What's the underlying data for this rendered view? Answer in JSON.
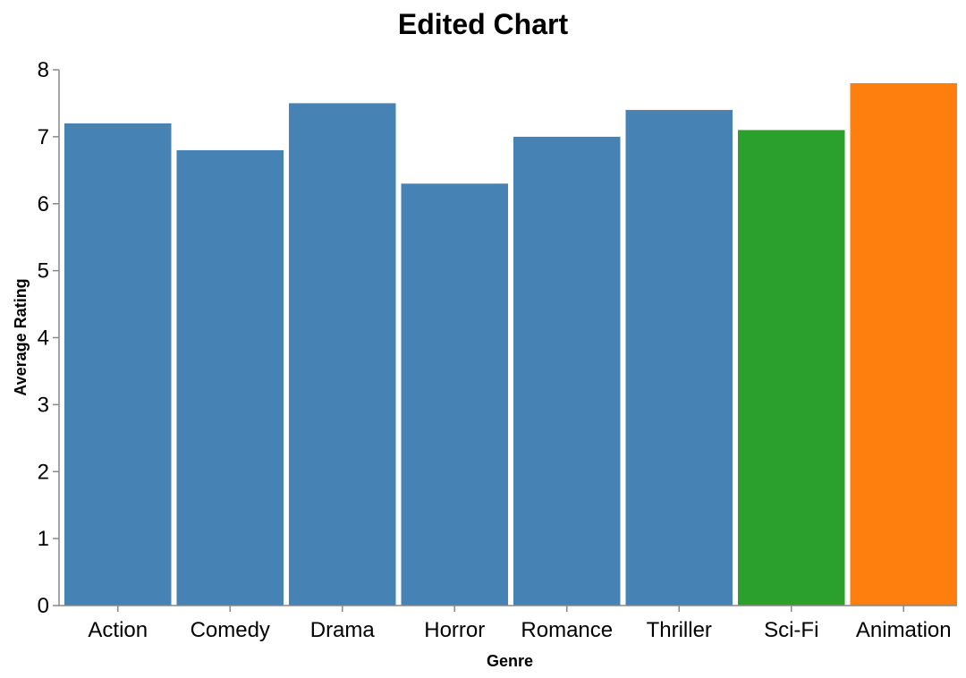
{
  "chart_data": {
    "type": "bar",
    "title": "Edited Chart",
    "xlabel": "Genre",
    "ylabel": "Average Rating",
    "categories": [
      "Action",
      "Comedy",
      "Drama",
      "Horror",
      "Romance",
      "Thriller",
      "Sci-Fi",
      "Animation"
    ],
    "values": [
      7.2,
      6.8,
      7.5,
      6.3,
      7.0,
      7.4,
      7.1,
      7.8
    ],
    "colors": [
      "#4682b4",
      "#4682b4",
      "#4682b4",
      "#4682b4",
      "#4682b4",
      "#4682b4",
      "#2ca02c",
      "#ff7f0e"
    ],
    "ylim": [
      0,
      8
    ],
    "yticks": [
      "0",
      "1",
      "2",
      "3",
      "4",
      "5",
      "6",
      "7",
      "8"
    ],
    "grid": false,
    "legend": "none"
  }
}
